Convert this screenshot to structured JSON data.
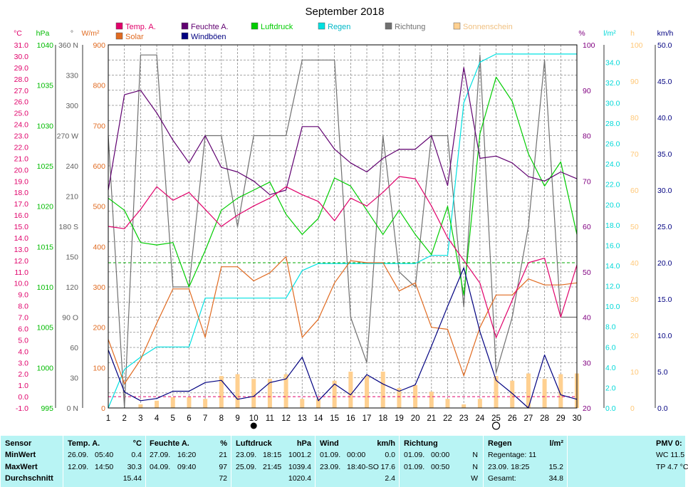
{
  "chart_data": {
    "type": "line",
    "title": "September 2018",
    "x": [
      1,
      2,
      3,
      4,
      5,
      6,
      7,
      8,
      9,
      10,
      11,
      12,
      13,
      14,
      15,
      16,
      17,
      18,
      19,
      20,
      21,
      22,
      23,
      24,
      25,
      26,
      27,
      28,
      29,
      30
    ],
    "legend": [
      {
        "name": "Temp. A.",
        "color": "#e0006a"
      },
      {
        "name": "Feuchte A.",
        "color": "#600070"
      },
      {
        "name": "Luftdruck",
        "color": "#00cc00"
      },
      {
        "name": "Regen",
        "color": "#00e0e0"
      },
      {
        "name": "Richtung",
        "color": "#707070"
      },
      {
        "name": "Sonnenschein",
        "color": "#ffd090"
      },
      {
        "name": "Solar",
        "color": "#e06a20"
      },
      {
        "name": "Windböen",
        "color": "#000080"
      }
    ],
    "series": [
      {
        "name": "Temp. A.",
        "color": "#e0006a",
        "axis": "temp",
        "values": [
          15,
          14.8,
          16.5,
          18.5,
          17.3,
          18,
          16.5,
          15,
          16,
          16.8,
          17.5,
          18.5,
          17.8,
          17.2,
          15.5,
          17.5,
          16.8,
          18,
          19.4,
          19.2,
          16.8,
          14,
          12,
          10,
          5.2,
          8.5,
          11.8,
          12.2,
          7,
          11.6
        ]
      },
      {
        "name": "Feuchte A.",
        "color": "#600070",
        "axis": "hum",
        "values": [
          68,
          89,
          90,
          85,
          79,
          74,
          80,
          73,
          72,
          70,
          67,
          68,
          82,
          82,
          77,
          74,
          72,
          75,
          77,
          77,
          80,
          69,
          95,
          75,
          75.5,
          74,
          71,
          70,
          72,
          70.5
        ]
      },
      {
        "name": "Luftdruck",
        "color": "#00cc00",
        "axis": "press",
        "values": [
          1021,
          1019.5,
          1015.5,
          1015.2,
          1015.5,
          1010,
          1014.5,
          1019.5,
          1021,
          1022,
          1023,
          1019,
          1016.5,
          1018.5,
          1023.5,
          1022.5,
          1019.5,
          1016.5,
          1019.5,
          1016.5,
          1014,
          1020,
          1009,
          1029,
          1036,
          1033,
          1026.5,
          1022.5,
          1025.5,
          1016.5
        ]
      },
      {
        "name": "Regen",
        "color": "#00e0e0",
        "axis": "rain",
        "values": [
          0,
          3.8,
          5,
          6,
          6,
          6,
          10.8,
          10.8,
          10.8,
          10.8,
          10.8,
          10.8,
          13.5,
          14.2,
          14.2,
          14.2,
          14.2,
          14.2,
          14.2,
          14.2,
          15,
          15,
          30,
          34,
          34.8,
          34.8,
          34.8,
          34.8,
          34.8,
          34.8
        ]
      },
      {
        "name": "Richtung",
        "color": "#707070",
        "axis": "dir",
        "values": [
          270,
          0,
          350,
          350,
          120,
          120,
          270,
          270,
          180,
          270,
          270,
          270,
          345,
          345,
          345,
          90,
          45,
          270,
          135,
          120,
          270,
          270,
          100,
          350,
          35,
          90,
          180,
          345,
          90,
          90
        ]
      },
      {
        "name": "Solar",
        "color": "#e06a20",
        "axis": "solar",
        "values": [
          170,
          60,
          120,
          210,
          295,
          295,
          175,
          350,
          350,
          315,
          335,
          375,
          175,
          220,
          310,
          365,
          360,
          360,
          290,
          310,
          200,
          195,
          80,
          200,
          280,
          280,
          320,
          305,
          305,
          310
        ]
      },
      {
        "name": "Windböen",
        "color": "#000080",
        "axis": "wind",
        "values": [
          8,
          2.2,
          1,
          1.3,
          2.3,
          2.3,
          3.5,
          3.8,
          1.2,
          1.6,
          3.5,
          4,
          7,
          1,
          3.3,
          1.8,
          4.6,
          3.3,
          2.3,
          3.2,
          8.5,
          14,
          19.3,
          10.5,
          3.8,
          2,
          0,
          7.3,
          1.8,
          1.2
        ]
      },
      {
        "name": "Sonnenschein",
        "color": "#ffd090",
        "axis": "sun",
        "kind": "bar",
        "values": [
          0,
          0,
          1,
          2,
          3,
          3,
          2.5,
          8.8,
          9.3,
          8,
          8,
          9.3,
          2.5,
          2.5,
          7.5,
          10,
          8.8,
          10,
          5.5,
          6.3,
          4.5,
          2.5,
          1,
          2.5,
          8.8,
          7.5,
          9.5,
          8,
          9.3,
          9.5
        ]
      }
    ],
    "reference_lines": [
      {
        "axis": "temp",
        "value": 0,
        "color": "#e0006a",
        "style": "dashed"
      },
      {
        "axis": "press",
        "value": 1013,
        "color": "#00aa00",
        "style": "dashed"
      }
    ],
    "axes": {
      "temp": {
        "unit": "°C",
        "color": "#e0006a",
        "ylim": [
          -1,
          31
        ],
        "ticks": [
          "31.0",
          "30.0",
          "29.0",
          "28.0",
          "27.0",
          "26.0",
          "25.0",
          "24.0",
          "23.0",
          "22.0",
          "21.0",
          "20.0",
          "19.0",
          "18.0",
          "17.0",
          "16.0",
          "15.0",
          "14.0",
          "13.0",
          "12.0",
          "11.0",
          "10.0",
          "9.0",
          "8.0",
          "7.0",
          "6.0",
          "5.0",
          "4.0",
          "3.0",
          "2.0",
          "1.0",
          "0.0",
          "-1.0"
        ]
      },
      "press": {
        "unit": "hPa",
        "color": "#00bb00",
        "ylim": [
          995,
          1040
        ],
        "ticks": [
          "1040",
          "1035",
          "1030",
          "1025",
          "1020",
          "1015",
          "1010",
          "1005",
          "1000",
          "995"
        ]
      },
      "dir": {
        "unit": "°",
        "color": "#606060",
        "ylim": [
          0,
          360
        ],
        "ticks": [
          "360 N",
          "330",
          "300",
          "270 W",
          "240",
          "210",
          "180 S",
          "150",
          "120",
          "90  O",
          "60",
          "30",
          "0  N"
        ]
      },
      "solar": {
        "unit": "W/m²",
        "color": "#e06a20",
        "ylim": [
          0,
          900
        ],
        "ticks": [
          "900",
          "800",
          "700",
          "600",
          "500",
          "400",
          "300",
          "200",
          "100",
          "0"
        ]
      },
      "hum": {
        "unit": "%",
        "color": "#800080",
        "ylim": [
          20,
          100
        ],
        "ticks": [
          "100",
          "90",
          "80",
          "70",
          "60",
          "50",
          "40",
          "30",
          "20"
        ]
      },
      "rain": {
        "unit": "l/m²",
        "color": "#00d8d8",
        "ylim": [
          0,
          35.7
        ],
        "ticks": [
          "34.0",
          "32.0",
          "30.0",
          "28.0",
          "26.0",
          "24.0",
          "22.0",
          "20.0",
          "18.0",
          "16.0",
          "14.0",
          "12.0",
          "10.0",
          "8.0",
          "6.0",
          "4.0",
          "2.0",
          "0.0"
        ]
      },
      "sun": {
        "unit": "h",
        "color": "#ffc878",
        "ylim": [
          0,
          100
        ],
        "ticks": [
          "100",
          "90",
          "80",
          "70",
          "60",
          "50",
          "40",
          "30",
          "20",
          "10",
          "0"
        ]
      },
      "wind": {
        "unit": "km/h",
        "color": "#000080",
        "ylim": [
          0,
          50
        ],
        "ticks": [
          "50.0",
          "45.0",
          "40.0",
          "35.0",
          "30.0",
          "25.0",
          "20.0",
          "15.0",
          "10.0",
          "5.0",
          "0.0"
        ]
      }
    },
    "moon_new_day": 10,
    "moon_full_day": 25
  },
  "stats": {
    "sensor": {
      "title": "Sensor",
      "rows": [
        "MinWert",
        "MaxWert",
        "Durchschnitt"
      ]
    },
    "temp": {
      "title": "Temp. A.",
      "unit": "°C",
      "rows": [
        [
          "26.09.",
          "05:40",
          "0.4"
        ],
        [
          "12.09.",
          "14:50",
          "30.3"
        ],
        [
          "",
          "",
          "15.44"
        ]
      ]
    },
    "hum": {
      "title": "Feuchte A.",
      "unit": "%",
      "rows": [
        [
          "27.09.",
          "16:20",
          "21"
        ],
        [
          "04.09.",
          "09:40",
          "97"
        ],
        [
          "",
          "",
          "72"
        ]
      ]
    },
    "press": {
      "title": "Luftdruck",
      "unit": "hPa",
      "rows": [
        [
          "23.09.",
          "18:15",
          "1001.2"
        ],
        [
          "25.09.",
          "21:45",
          "1039.4"
        ],
        [
          "",
          "",
          "1020.4"
        ]
      ]
    },
    "wind": {
      "title": "Wind",
      "unit": "km/h",
      "rows": [
        [
          "01.09.",
          "00:00",
          "0.0"
        ],
        [
          "23.09.",
          "18:40-SO",
          "17.6"
        ],
        [
          "",
          "",
          "2.4"
        ]
      ]
    },
    "dir": {
      "title": "Richtung",
      "rows": [
        [
          "01.09.",
          "00:00",
          "N"
        ],
        [
          "01.09.",
          "00:50",
          "N"
        ],
        [
          "",
          "",
          "W"
        ]
      ]
    },
    "rain": {
      "title": "Regen",
      "unit": "l/m²",
      "rows": [
        [
          "Regentage: 11",
          ""
        ],
        [
          "23.09.  18:25",
          "15.2"
        ],
        [
          "Gesamt:",
          "34.8"
        ]
      ]
    },
    "pmv": {
      "title": "PMV 0:",
      "rows": [
        "WC 11.5",
        "TP 4.7 °C"
      ]
    }
  }
}
